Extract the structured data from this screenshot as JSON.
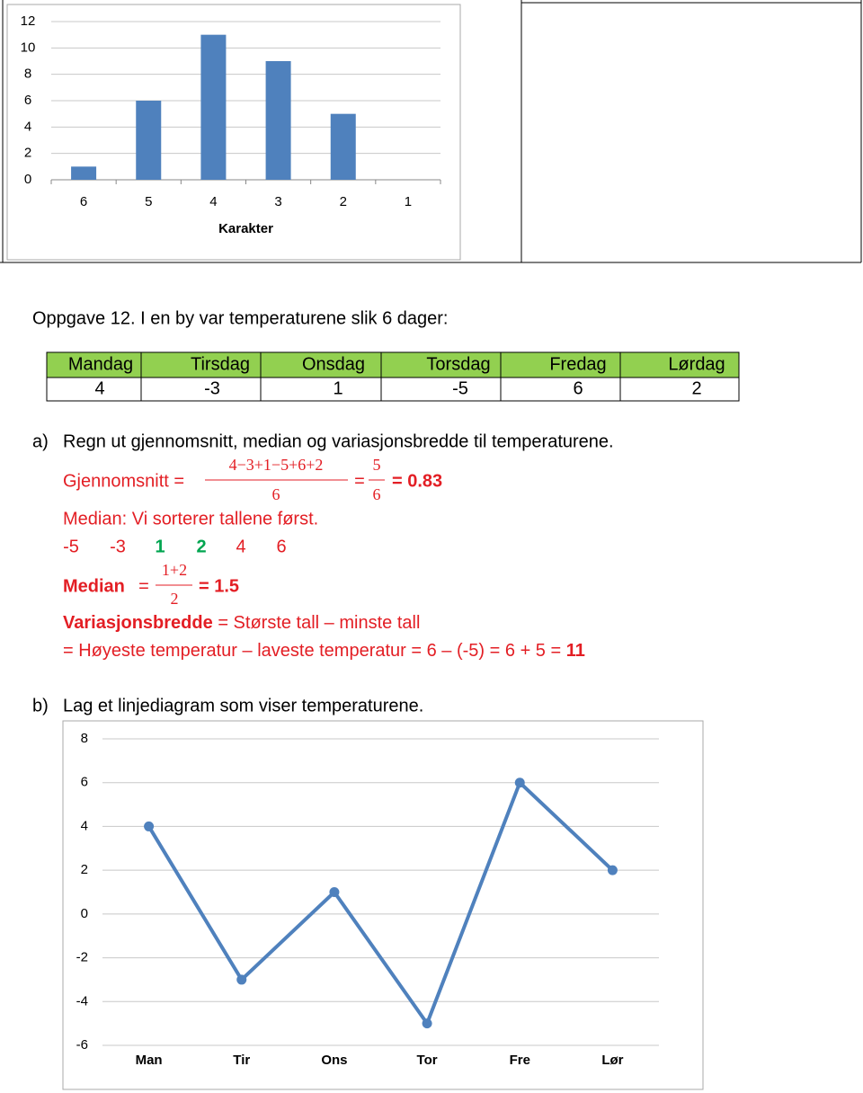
{
  "chart_data": [
    {
      "type": "bar",
      "categories": [
        "6",
        "5",
        "4",
        "3",
        "2",
        "1"
      ],
      "values": [
        1,
        6,
        11,
        9,
        5,
        0
      ],
      "color": "#4f81bd",
      "x_label": "Karakter",
      "ylim": [
        0,
        12
      ],
      "yticks": [
        0,
        2,
        4,
        6,
        8,
        10,
        12
      ],
      "grid": true
    },
    {
      "type": "line",
      "categories": [
        "Man",
        "Tir",
        "Ons",
        "Tor",
        "Fre",
        "Lør"
      ],
      "values": [
        4,
        -3,
        1,
        -5,
        6,
        2
      ],
      "color": "#4f81bd",
      "ylim": [
        -6,
        8
      ],
      "yticks": [
        -6,
        -4,
        -2,
        0,
        2,
        4,
        6,
        8
      ],
      "grid": true
    }
  ],
  "task": {
    "title": "Oppgave 12. I en by var temperaturene slik 6 dager:"
  },
  "table": {
    "header": [
      "Mandag",
      "Tirsdag",
      "Onsdag",
      "Torsdag",
      "Fredag",
      "Lørdag"
    ],
    "rows": [
      [
        4,
        -3,
        1,
        -5,
        6,
        2
      ]
    ]
  },
  "part_a": {
    "label": "a)",
    "question": "Regn ut gjennomsnitt, median og variasjonsbredde til temperaturene.",
    "mean": {
      "label": "Gjennomsnitt =",
      "numerator": "4−3+1−5+6+2",
      "denominator": "6",
      "equals": "=",
      "numerator2": "5",
      "denominator2": "6",
      "result": "= 0.83"
    },
    "median_intro": "Median: Vi sorterer tallene først.",
    "sorted": [
      "-5",
      "-3",
      "1",
      "2",
      "4",
      "6"
    ],
    "median": {
      "label": "Median",
      "equals": "=",
      "numerator": "1+2",
      "denominator": "2",
      "result": "= 1.5"
    },
    "range": {
      "term": "Variasjonsbredde",
      "definition": "= Største tall – minste tall",
      "calculation": "= Høyeste temperatur – laveste temperatur = 6 – (-5) = 6 + 5 =",
      "result": "11"
    }
  },
  "part_b": {
    "label": "b)",
    "question": "Lag et linjediagram som viser temperaturene."
  }
}
